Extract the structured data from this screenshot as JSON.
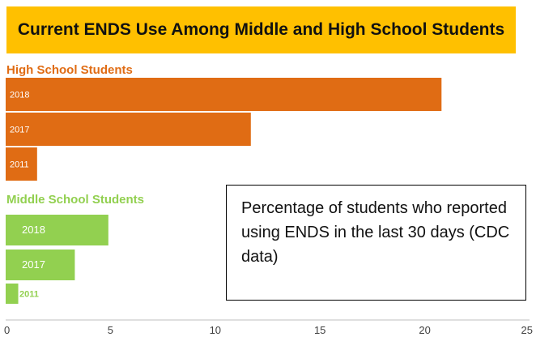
{
  "chart_data": {
    "type": "bar",
    "orientation": "horizontal",
    "title": "Current ENDS Use Among Middle and High School Students",
    "xlim": [
      0,
      25
    ],
    "x_ticks": [
      "0",
      "5",
      "10",
      "15",
      "20",
      "25"
    ],
    "grid": false,
    "groups": [
      {
        "name": "High School Students",
        "color": "#e06c14",
        "categories": [
          "2018",
          "2017",
          "2011"
        ],
        "values": [
          20.8,
          11.7,
          1.5
        ]
      },
      {
        "name": "Middle School Students",
        "color": "#92d050",
        "categories": [
          "2018",
          "2017",
          "2011"
        ],
        "values": [
          4.9,
          3.3,
          0.6
        ]
      }
    ]
  },
  "annotation": {
    "text": "Percentage of students who reported using ENDS in the last 30 days (CDC data)"
  }
}
